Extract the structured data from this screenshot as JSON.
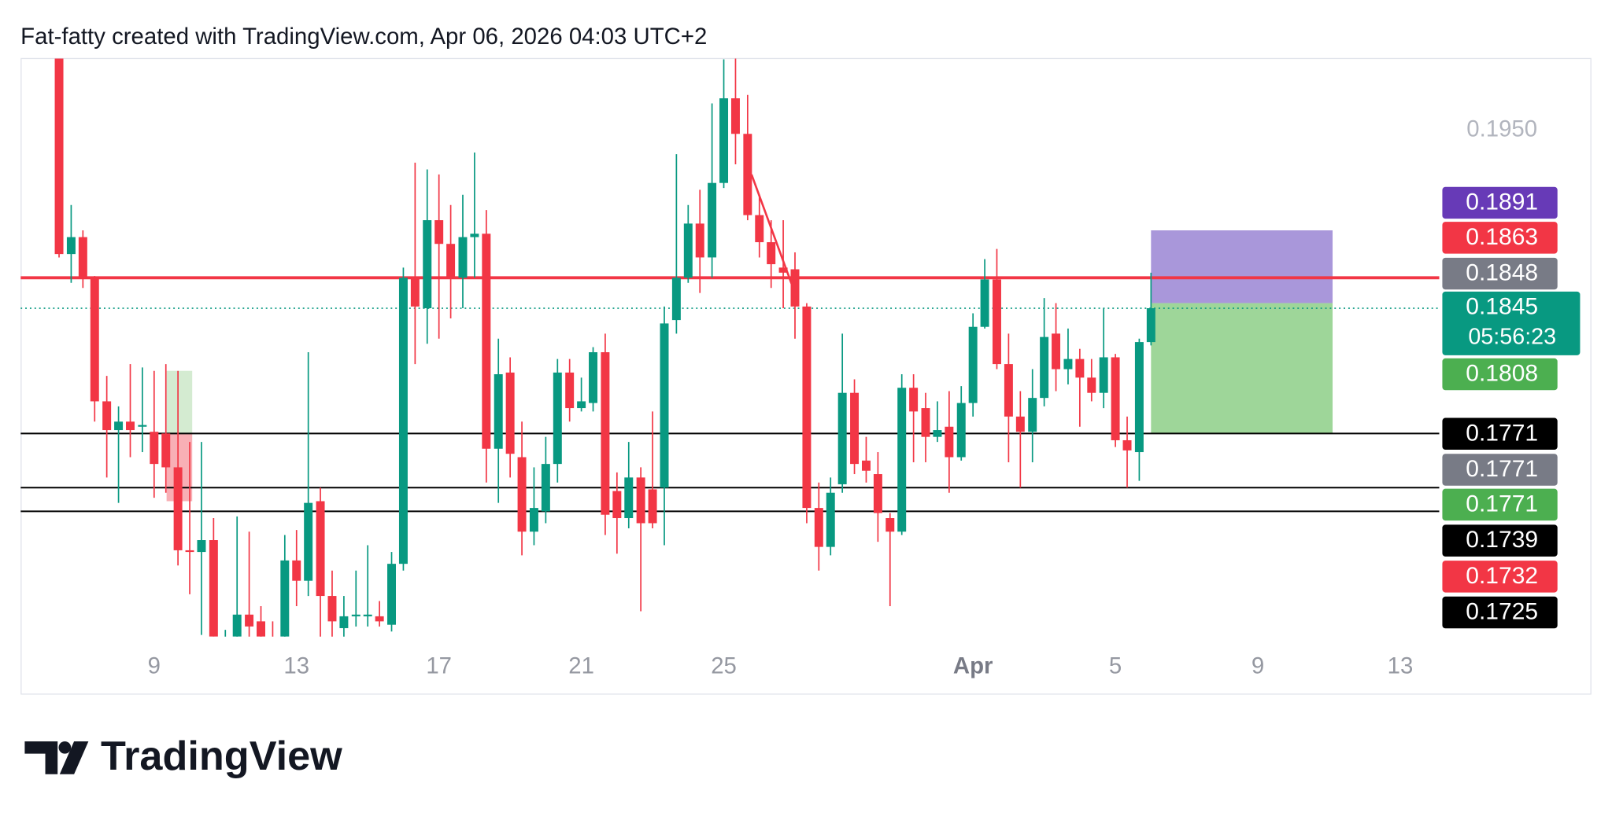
{
  "chart_data": {
    "type": "candlestick",
    "title": "Fat-fatty created with TradingView.com, Apr 06, 2026 04:03 UTC+2",
    "branding": "TradingView",
    "up_color": "#089981",
    "down_color": "#f23645",
    "x": [
      6.33,
      6.67,
      7,
      7.33,
      7.67,
      8,
      8.33,
      8.67,
      9,
      9.33,
      9.67,
      10,
      10.33,
      10.67,
      11,
      11.33,
      11.67,
      12,
      12.33,
      12.67,
      13,
      13.33,
      13.67,
      14,
      14.33,
      14.67,
      15,
      15.33,
      15.67,
      16,
      16.33,
      16.67,
      17,
      17.33,
      17.67,
      18,
      18.33,
      18.67,
      19,
      19.33,
      19.67,
      20,
      20.33,
      20.67,
      21,
      21.33,
      21.67,
      22,
      22.33,
      22.67,
      23,
      23.33,
      23.67,
      24,
      24.33,
      24.67,
      25,
      25.33,
      25.67,
      26,
      26.33,
      26.67,
      27,
      27.33,
      27.67,
      28,
      28.33,
      28.67,
      29,
      29.33,
      29.67,
      30,
      30.33,
      30.67,
      31,
      31.33,
      31.67,
      32,
      32.33,
      32.67,
      33,
      33.33,
      33.67,
      34,
      34.33,
      34.67,
      35,
      35.33,
      35.67,
      36,
      36.33,
      36.67,
      37
    ],
    "open": [
      0.1993,
      0.1877,
      0.1887,
      0.1863,
      0.179,
      0.1773,
      0.1778,
      0.1775,
      0.1772,
      0.1771,
      0.1751,
      0.1702,
      0.1701,
      0.1708,
      0.164,
      0.1651,
      0.1664,
      0.166,
      0.165,
      0.1651,
      0.1696,
      0.1684,
      0.1731,
      0.1675,
      0.1656,
      0.1663,
      0.1663,
      0.1663,
      0.1658,
      0.1694,
      0.1863,
      0.1845,
      0.1897,
      0.1883,
      0.1863,
      0.1887,
      0.1889,
      0.1762,
      0.1807,
      0.1757,
      0.1713,
      0.1725,
      0.1753,
      0.1807,
      0.1786,
      0.1789,
      0.1819,
      0.1737,
      0.1721,
      0.1745,
      0.1738,
      0.1739,
      0.1838,
      0.1863,
      0.1895,
      0.1875,
      0.1919,
      0.1969,
      0.1948,
      0.19,
      0.1884,
      0.1869,
      0.1868,
      0.1846,
      0.1727,
      0.1704,
      0.1741,
      0.1795,
      0.1755,
      0.1747,
      0.1721,
      0.1713,
      0.1798,
      0.1786,
      0.1769,
      0.1775,
      0.1757,
      0.1789,
      0.1834,
      0.1862,
      0.1812,
      0.1781,
      0.1772,
      0.1792,
      0.183,
      0.1809,
      0.1815,
      0.1804,
      0.1795,
      0.1816,
      0.1767,
      0.176,
      0.1825
    ],
    "high": [
      0.1995,
      0.1906,
      0.1891,
      0.1864,
      0.1805,
      0.1787,
      0.1812,
      0.181,
      0.1808,
      0.1812,
      0.1808,
      0.1766,
      0.1766,
      0.1721,
      0.1655,
      0.1722,
      0.1713,
      0.1669,
      0.166,
      0.1711,
      0.1714,
      0.1819,
      0.1739,
      0.169,
      0.1675,
      0.169,
      0.1705,
      0.1672,
      0.1701,
      0.1869,
      0.1931,
      0.1927,
      0.1924,
      0.1906,
      0.1912,
      0.1937,
      0.1903,
      0.1827,
      0.1816,
      0.1778,
      0.1751,
      0.1769,
      0.1815,
      0.1815,
      0.1804,
      0.1822,
      0.183,
      0.1748,
      0.1766,
      0.1751,
      0.1784,
      0.1846,
      0.1936,
      0.1906,
      0.1915,
      0.1966,
      0.1992,
      0.1993,
      0.1971,
      0.1912,
      0.1897,
      0.1897,
      0.1878,
      0.1848,
      0.1742,
      0.1745,
      0.183,
      0.1803,
      0.1769,
      0.176,
      0.1724,
      0.1806,
      0.1806,
      0.1795,
      0.179,
      0.1796,
      0.1799,
      0.1842,
      0.1874,
      0.188,
      0.183,
      0.1796,
      0.1809,
      0.1851,
      0.1848,
      0.1833,
      0.1821,
      0.1815,
      0.1845,
      0.1818,
      0.1781,
      0.1827,
      0.1866
    ],
    "low": [
      0.1875,
      0.186,
      0.1857,
      0.1778,
      0.1745,
      0.173,
      0.1757,
      0.176,
      0.1733,
      0.1736,
      0.1693,
      0.1676,
      0.1652,
      0.1651,
      0.163,
      0.1645,
      0.1648,
      0.1647,
      0.1638,
      0.1648,
      0.1669,
      0.1675,
      0.165,
      0.165,
      0.165,
      0.1657,
      0.1657,
      0.1657,
      0.1654,
      0.169,
      0.1812,
      0.1824,
      0.1827,
      0.1839,
      0.1845,
      0.1863,
      0.1742,
      0.173,
      0.1745,
      0.1699,
      0.1705,
      0.1718,
      0.1742,
      0.1778,
      0.1784,
      0.1784,
      0.1711,
      0.17,
      0.1715,
      0.1666,
      0.1715,
      0.1705,
      0.183,
      0.186,
      0.1854,
      0.1863,
      0.1916,
      0.193,
      0.1897,
      0.1875,
      0.1857,
      0.1845,
      0.1827,
      0.1718,
      0.169,
      0.1699,
      0.1736,
      0.1747,
      0.1742,
      0.1707,
      0.1669,
      0.1711,
      0.1754,
      0.1754,
      0.1766,
      0.1736,
      0.1755,
      0.1781,
      0.1833,
      0.1809,
      0.1754,
      0.1739,
      0.1754,
      0.1787,
      0.1796,
      0.18,
      0.1775,
      0.179,
      0.1786,
      0.1763,
      0.1739,
      0.1743,
      0.1823
    ],
    "close": [
      0.1877,
      0.1887,
      0.1863,
      0.179,
      0.1773,
      0.1778,
      0.1773,
      0.1776,
      0.1753,
      0.1751,
      0.1702,
      0.1701,
      0.1708,
      0.1651,
      0.1648,
      0.1664,
      0.1657,
      0.1651,
      0.1645,
      0.1696,
      0.1684,
      0.173,
      0.1675,
      0.166,
      0.1663,
      0.1664,
      0.1664,
      0.166,
      0.1694,
      0.1863,
      0.1846,
      0.1897,
      0.1883,
      0.1863,
      0.1887,
      0.1889,
      0.1762,
      0.1806,
      0.1759,
      0.1713,
      0.1727,
      0.1753,
      0.1807,
      0.1786,
      0.179,
      0.1819,
      0.1723,
      0.1721,
      0.1745,
      0.1718,
      0.1718,
      0.1836,
      0.1863,
      0.1895,
      0.1875,
      0.1919,
      0.1969,
      0.1948,
      0.19,
      0.1884,
      0.1871,
      0.1866,
      0.1846,
      0.1727,
      0.1704,
      0.1736,
      0.1795,
      0.1753,
      0.1749,
      0.1724,
      0.1713,
      0.1798,
      0.1784,
      0.1769,
      0.1773,
      0.1757,
      0.1789,
      0.1834,
      0.1862,
      0.1812,
      0.1781,
      0.1772,
      0.1792,
      0.1828,
      0.1809,
      0.1815,
      0.1804,
      0.1795,
      0.1816,
      0.1767,
      0.1761,
      0.1825,
      0.1845
    ],
    "xlim": [
      5.25,
      49.34
    ],
    "xticks": [
      9,
      13,
      17,
      21,
      25,
      {
        "value": 32,
        "label": "Apr"
      },
      {
        "value": 36,
        "label": "5"
      },
      {
        "value": 40,
        "label": "9"
      },
      {
        "value": 44,
        "label": "13"
      }
    ],
    "ylim": [
      0.1651,
      0.19925
    ],
    "yticks": [
      {
        "value": 0.195,
        "label": "0.1950"
      }
    ],
    "grid": false,
    "hlines": [
      {
        "value": 0.1863,
        "color": "#f23645",
        "width": 3
      },
      {
        "value": 0.1771,
        "color": "#000000",
        "width": 1.5
      },
      {
        "value": 0.1739,
        "color": "#000000",
        "width": 1.5
      },
      {
        "value": 0.1725,
        "color": "#000000",
        "width": 1.5
      }
    ],
    "current_price": {
      "value": 0.1845,
      "color": "#089981"
    },
    "boxes": [
      {
        "x": [
          37,
          42.1
        ],
        "y": [
          0.1848,
          0.1891
        ],
        "color": "#a08cd6"
      },
      {
        "x": [
          37,
          42.1
        ],
        "y": [
          0.1771,
          0.1848
        ],
        "color": "#93d18e"
      },
      {
        "x": [
          9.35,
          10.07
        ],
        "y": [
          0.1771,
          0.1808
        ],
        "color": "#cfe9cc"
      },
      {
        "x": [
          9.35,
          10.07
        ],
        "y": [
          0.1731,
          0.1771
        ],
        "color": "#f7a6ad"
      }
    ],
    "trendline": {
      "x": [
        25.78,
        27.05
      ],
      "y": [
        0.1924,
        0.1851
      ],
      "color": "#f23645"
    },
    "price_labels": [
      {
        "value": 0.1891,
        "color": "#673ab7"
      },
      {
        "value": 0.1863,
        "color": "#f23645"
      },
      {
        "value": 0.1848,
        "color": "#787b86"
      },
      {
        "value": 0.1845,
        "color": "#089981",
        "countdown": "05:56:23"
      },
      {
        "value": 0.1808,
        "color": "#4caf50"
      },
      {
        "value": 0.1771,
        "color": "#000000"
      },
      {
        "value": 0.1771,
        "color": "#787b86"
      },
      {
        "value": 0.1771,
        "color": "#4caf50"
      },
      {
        "value": 0.1739,
        "color": "#000000"
      },
      {
        "value": 0.1732,
        "color": "#f23645"
      },
      {
        "value": 0.1725,
        "color": "#000000"
      }
    ]
  }
}
